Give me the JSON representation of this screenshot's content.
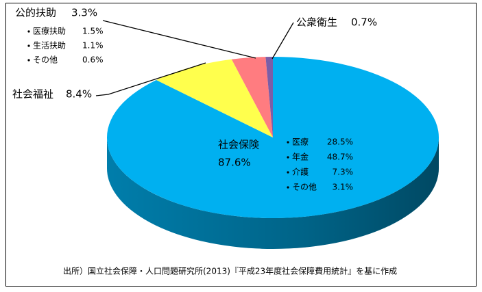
{
  "chart_data": {
    "type": "pie",
    "categories": [
      "社会保険",
      "社会福祉",
      "公的扶助",
      "公衆衛生"
    ],
    "values": [
      87.6,
      8.4,
      3.3,
      0.7
    ],
    "value_labels": [
      "87.6%",
      "8.4%",
      "3.3%",
      "0.7%"
    ],
    "colors": [
      "#00b0f0",
      "#ffff4d",
      "#ff7c80",
      "#7b5ea7"
    ],
    "details": [
      [
        {
          "name": "医療",
          "value": 28.5,
          "value_label": "28.5%"
        },
        {
          "name": "年金",
          "value": 48.7,
          "value_label": "48.7%"
        },
        {
          "name": "介護",
          "value": 7.3,
          "value_label": "7.3%"
        },
        {
          "name": "その他",
          "value": 3.1,
          "value_label": "3.1%"
        }
      ],
      [],
      [
        {
          "name": "医療扶助",
          "value": 1.5,
          "value_label": "1.5%"
        },
        {
          "name": "生活扶助",
          "value": 1.1,
          "value_label": "1.1%"
        },
        {
          "name": "その他",
          "value": 0.6,
          "value_label": "0.6%"
        }
      ],
      []
    ],
    "source": "出所）国立社会保障・人口問題研究所(2013)『平成23年度社会保障費用統計』を基に作成"
  }
}
